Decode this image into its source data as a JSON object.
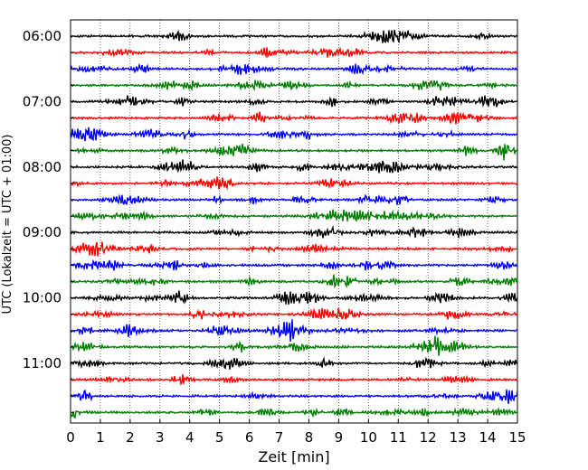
{
  "chart_data": {
    "type": "line",
    "xlabel": "Zeit  [min]",
    "ylabel": "UTC (Lokalzeit = UTC + 01:00)",
    "xlim": [
      0,
      15
    ],
    "x_ticks": [
      "0",
      "1",
      "2",
      "3",
      "4",
      "5",
      "6",
      "7",
      "8",
      "9",
      "10",
      "11",
      "12",
      "13",
      "14",
      "15"
    ],
    "y_tick_labels": [
      "06:00",
      "07:00",
      "08:00",
      "09:00",
      "10:00",
      "11:00"
    ],
    "trace_start_times": [
      "06:00",
      "06:15",
      "06:30",
      "06:45",
      "07:00",
      "07:15",
      "07:30",
      "07:45",
      "08:00",
      "08:15",
      "08:30",
      "08:45",
      "09:00",
      "09:15",
      "09:30",
      "09:45",
      "10:00",
      "10:15",
      "10:30",
      "10:45",
      "11:00",
      "11:15",
      "11:30",
      "11:45"
    ],
    "trace_colors": [
      "#000000",
      "#ff0000",
      "#0000ff",
      "#007f00"
    ],
    "grid": "vertical dotted lines at every minute"
  }
}
